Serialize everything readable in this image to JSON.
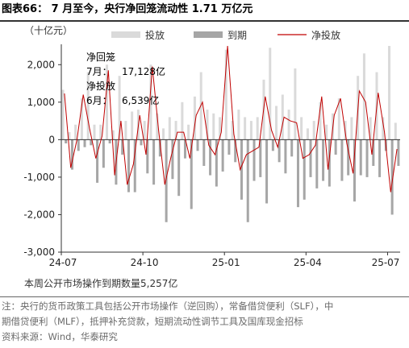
{
  "title": "图表66：  7 月至今，央行净回笼流动性 1.71 万亿元",
  "notes": {
    "line1": "注：央行的货币政策工具包括公开市场操作（逆回购），常备借贷便利（SLF），中",
    "line2": "期借贷便利（MLF），抵押补充贷款，短期流动性调节工具及国库现金招标",
    "line3": "资料来源：Wind，华泰研究"
  },
  "chart_data": {
    "type": "bar",
    "unit_label": "（十亿元）",
    "ylim": [
      -3000,
      2500
    ],
    "yticks": [
      -3000,
      -2000,
      -1000,
      0,
      1000,
      2000
    ],
    "ytick_labels": [
      "-3,000",
      "-2,000",
      "-1,000",
      "0",
      "1,000",
      "2,000"
    ],
    "xtick_labels": [
      "24-07",
      "24-10",
      "25-01",
      "25-04",
      "25-07"
    ],
    "xtick_index": [
      0,
      13,
      26,
      39,
      52
    ],
    "legend": {
      "investment": "投放",
      "maturity": "到期",
      "net": "净投放"
    },
    "colors": {
      "investment": "#dadada",
      "maturity": "#a6a6a6",
      "net": "#c00000",
      "axis": "#333333"
    },
    "annotations": {
      "net_recall_label": "净回笼",
      "net_recall_month": "7月：",
      "net_recall_value": "17,128亿",
      "net_invest_label": "净投放",
      "net_invest_month": "6月：",
      "net_invest_value": "6,539亿"
    },
    "footer": "本周公开市场操作到期数量5,257亿",
    "series": [
      {
        "name": "投放",
        "values": [
          1330,
          200,
          400,
          1100,
          1800,
          400,
          400,
          2000,
          250,
          1700,
          500,
          750,
          800,
          500,
          2000,
          700,
          300,
          600,
          500,
          1000,
          400,
          1150,
          1800,
          800,
          700,
          600,
          2400,
          500,
          800,
          600,
          500,
          600,
          1600,
          2450,
          900,
          1200,
          800,
          1900,
          600,
          300,
          500,
          1000,
          400,
          700,
          1100,
          500,
          600,
          1700,
          2300,
          600,
          1800,
          600,
          2500,
          450
        ]
      },
      {
        "name": "到期",
        "values": [
          -100,
          -800,
          -300,
          -200,
          -150,
          -1150,
          -750,
          -100,
          -1200,
          -400,
          -1400,
          -1400,
          -150,
          -900,
          -1200,
          -450,
          -2200,
          -1050,
          -1500,
          -500,
          -1850,
          -300,
          -700,
          -950,
          -1250,
          -850,
          -400,
          -600,
          -1600,
          -2200,
          -1100,
          -1000,
          -1700,
          -300,
          -600,
          -900,
          -450,
          -1800,
          -1600,
          -1000,
          -1300,
          -1100,
          -1250,
          -400,
          -1100,
          -950,
          -1650,
          -950,
          -1000,
          -700,
          -1000,
          -300,
          -2000,
          -700
        ]
      },
      {
        "name": "净投放",
        "values": [
          1230,
          -750,
          0,
          1200,
          300,
          -500,
          100,
          1850,
          -950,
          500,
          -1200,
          -650,
          650,
          -400,
          1950,
          250,
          -1200,
          -450,
          200,
          200,
          -500,
          650,
          1000,
          -150,
          -400,
          200,
          2500,
          150,
          -800,
          -400,
          -300,
          -200,
          1150,
          250,
          -200,
          600,
          500,
          450,
          -500,
          -400,
          -150,
          1150,
          -800,
          650,
          1100,
          -100,
          -900,
          1300,
          1000,
          -400,
          1250,
          200,
          -1400,
          -250
        ]
      }
    ]
  }
}
